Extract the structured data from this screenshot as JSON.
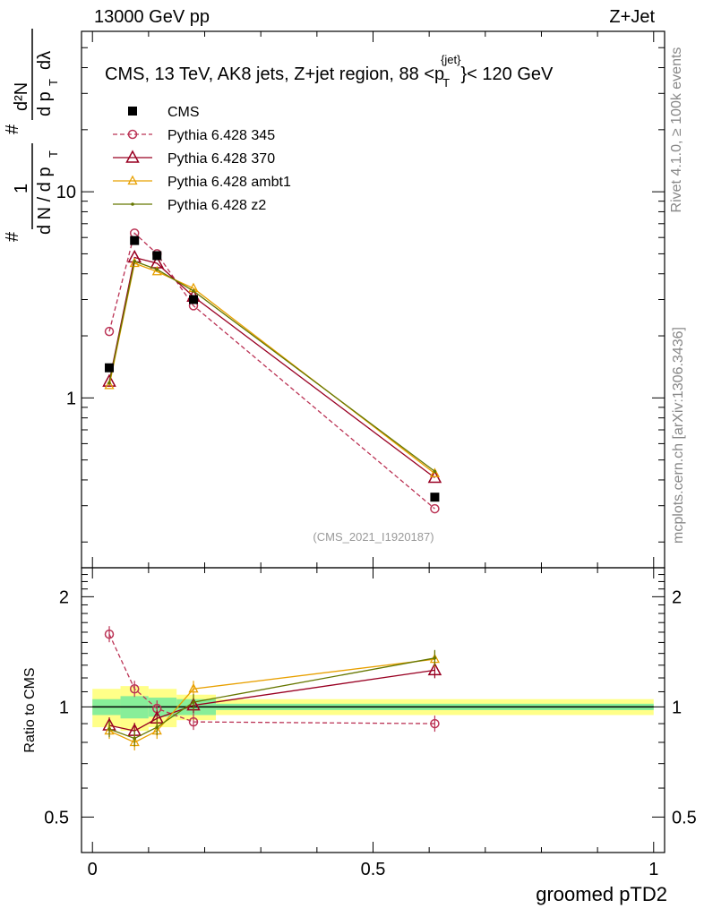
{
  "header": {
    "left": "13000 GeV pp",
    "right": "Z+Jet"
  },
  "side_labels": {
    "rivet": "Rivet 4.1.0, ≥ 100k events",
    "mcplots": "mcplots.cern.ch [arXiv:1306.3436]"
  },
  "chart_data": {
    "type": "scatter",
    "title_main": "CMS, 13 TeV, AK8 jets, Z+jet region, 88 <",
    "title_pt": "p",
    "title_sup": "{jet}",
    "title_sub": "T",
    "title_end": "}< 120 GeV",
    "watermark": "(CMS_2021_I1920187)",
    "xlabel": "groomed pTD2",
    "ylabel_top": {
      "hash": "#",
      "one": "1",
      "dn": "d N / d p",
      "t": "T",
      "num": "d²N",
      "den_dp": "d p",
      "den_t": "T",
      "den_dl": "dλ"
    },
    "ylabel_ratio": "Ratio to CMS",
    "xlim": [
      0,
      1
    ],
    "ylim": [
      0.15,
      60
    ],
    "yscale": "log",
    "ratio_ylim": [
      0.4,
      2.4
    ],
    "x_ticks": [
      "0",
      "0.5",
      "1"
    ],
    "x_tick_values": [
      0,
      0.5,
      1
    ],
    "y_ticks": [
      "1",
      "10"
    ],
    "y_tick_values": [
      1,
      10
    ],
    "ratio_ticks": [
      "0.5",
      "1",
      "2"
    ],
    "ratio_tick_values": [
      0.5,
      1,
      2
    ],
    "x": [
      0.03,
      0.075,
      0.115,
      0.18,
      0.61
    ],
    "ratio_band": {
      "edges": [
        0.0,
        0.05,
        0.1,
        0.15,
        0.22,
        1.0
      ],
      "inner": [
        [
          0.95,
          1.05
        ],
        [
          0.93,
          1.07
        ],
        [
          0.94,
          1.06
        ],
        [
          0.95,
          1.05
        ],
        [
          0.98,
          1.02
        ]
      ],
      "outer": [
        [
          0.88,
          1.12
        ],
        [
          0.86,
          1.14
        ],
        [
          0.88,
          1.12
        ],
        [
          0.92,
          1.08
        ],
        [
          0.95,
          1.05
        ]
      ]
    },
    "series": [
      {
        "name": "CMS",
        "legend": "CMS",
        "color": "#000000",
        "marker": "square",
        "dash": "none",
        "values": [
          1.4,
          5.8,
          4.9,
          3.0,
          0.33
        ],
        "ratio": [
          1,
          1,
          1,
          1,
          1
        ]
      },
      {
        "name": "Pythia 6.428 345",
        "legend": "Pythia 6.428 345",
        "color": "#bb3355",
        "marker": "circle",
        "dash": "dashed",
        "values": [
          2.1,
          6.3,
          5.0,
          2.8,
          0.29
        ],
        "ratio": [
          1.58,
          1.12,
          0.99,
          0.91,
          0.9
        ]
      },
      {
        "name": "Pythia 6.428 370",
        "legend": "Pythia 6.428 370",
        "color": "#990022",
        "marker": "triangle",
        "dash": "none",
        "values": [
          1.2,
          4.8,
          4.5,
          3.1,
          0.41
        ],
        "ratio": [
          0.89,
          0.86,
          0.93,
          1.01,
          1.26
        ]
      },
      {
        "name": "Pythia 6.428 ambt1",
        "legend": "Pythia 6.428 ambt1",
        "color": "#e8a000",
        "marker": "triangle-small",
        "dash": "none",
        "values": [
          1.15,
          4.5,
          4.1,
          3.4,
          0.43
        ],
        "ratio": [
          0.86,
          0.8,
          0.86,
          1.12,
          1.35
        ]
      },
      {
        "name": "Pythia 6.428 z2",
        "legend": "Pythia 6.428 z2",
        "color": "#667700",
        "marker": "dot",
        "dash": "none",
        "values": [
          1.18,
          4.6,
          4.2,
          3.3,
          0.44
        ],
        "ratio": [
          0.87,
          0.82,
          0.88,
          1.03,
          1.36
        ]
      }
    ]
  }
}
